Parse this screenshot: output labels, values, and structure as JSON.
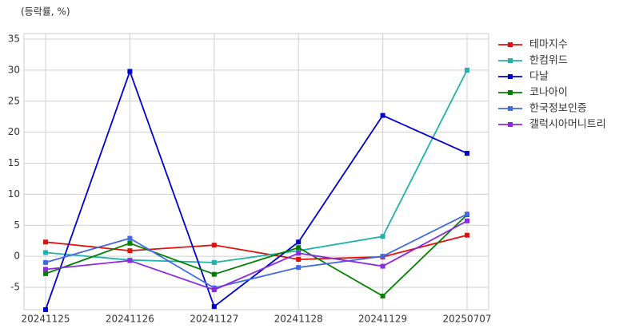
{
  "chart_data": {
    "type": "line",
    "y_label": "(등락률, %)",
    "categories": [
      "20241125",
      "20241126",
      "20241127",
      "20241128",
      "20241129",
      "20250707"
    ],
    "ylim": [
      -8.6,
      35.9
    ],
    "yticks": [
      -5,
      0,
      5,
      10,
      15,
      20,
      25,
      30,
      35
    ],
    "grid": true,
    "legend": "outside-right",
    "series": [
      {
        "name": "테마지수",
        "color": "#e0100f",
        "values": [
          2.3,
          0.9,
          1.8,
          -0.5,
          -0.1,
          3.4
        ]
      },
      {
        "name": "한컴위드",
        "color": "#20b2aa",
        "values": [
          0.6,
          -0.6,
          -1.0,
          0.9,
          3.2,
          30.0
        ]
      },
      {
        "name": "다날",
        "color": "#0000cd",
        "values": [
          -8.6,
          29.8,
          -8.1,
          2.3,
          22.7,
          16.6
        ]
      },
      {
        "name": "코나아이",
        "color": "#008000",
        "values": [
          -2.8,
          2.1,
          -2.9,
          1.4,
          -6.4,
          6.7
        ]
      },
      {
        "name": "한국정보인증",
        "color": "#4169e1",
        "values": [
          -1.0,
          2.9,
          -5.1,
          -1.8,
          0.0,
          6.8
        ]
      },
      {
        "name": "갤럭시아머니트리",
        "color": "#8a2be2",
        "values": [
          -2.1,
          -0.7,
          -5.4,
          0.5,
          -1.6,
          5.7
        ]
      }
    ]
  }
}
